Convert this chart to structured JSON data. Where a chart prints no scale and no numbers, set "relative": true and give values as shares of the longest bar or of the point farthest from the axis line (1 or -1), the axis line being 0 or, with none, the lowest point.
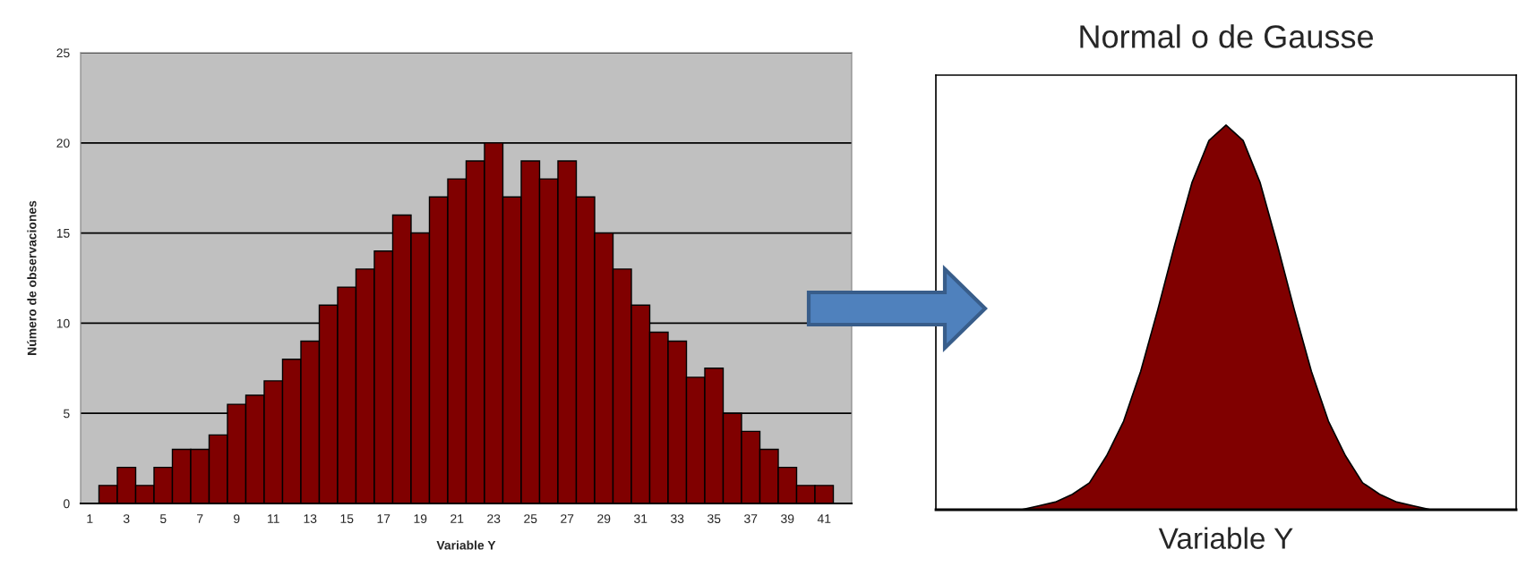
{
  "chart_data": [
    {
      "type": "bar",
      "xlabel": "Variable Y",
      "ylabel": "Número de observaciones",
      "categories": [
        "1",
        null,
        "3",
        null,
        "5",
        null,
        "7",
        null,
        "9",
        null,
        "11",
        null,
        "13",
        null,
        "15",
        null,
        "17",
        null,
        "19",
        null,
        "21",
        null,
        "23",
        null,
        "25",
        null,
        "27",
        null,
        "29",
        null,
        "31",
        null,
        "33",
        null,
        "35",
        null,
        "37",
        null,
        "39",
        null,
        "41",
        null
      ],
      "values": [
        0,
        1,
        2,
        1,
        2,
        3,
        3,
        3.8,
        5.5,
        6,
        6.8,
        8,
        9,
        11,
        12,
        13,
        14,
        16,
        15,
        17,
        18,
        19,
        20,
        17,
        19,
        18,
        19,
        17,
        15,
        13,
        11,
        9.5,
        9,
        7,
        7.5,
        5,
        4,
        3,
        2,
        1,
        1,
        0
      ],
      "color": "#800000",
      "ylim": [
        0,
        25
      ],
      "yticks": [
        0,
        5,
        10,
        15,
        20,
        25
      ],
      "grid": "y"
    },
    {
      "type": "area",
      "title": "Normal o de Gausse",
      "xlabel": "Variable Y",
      "relative": true,
      "tick_labels": false,
      "categories": [
        null,
        null,
        null,
        null,
        null,
        null,
        null,
        null,
        null,
        null,
        null,
        null,
        null,
        null,
        null,
        null,
        null,
        null,
        null,
        null,
        null,
        null,
        null,
        null,
        null,
        null,
        null,
        null,
        null,
        null,
        null,
        null,
        null,
        null,
        null
      ],
      "values": [
        null,
        null,
        null,
        null,
        null,
        0,
        0.01,
        0.02,
        0.04,
        0.07,
        0.14,
        0.23,
        0.36,
        0.52,
        0.69,
        0.85,
        0.96,
        1,
        0.96,
        0.85,
        0.69,
        0.52,
        0.36,
        0.23,
        0.14,
        0.07,
        0.04,
        0.02,
        0.01,
        0,
        null,
        null,
        null,
        null,
        null
      ],
      "color": "#800000"
    }
  ]
}
